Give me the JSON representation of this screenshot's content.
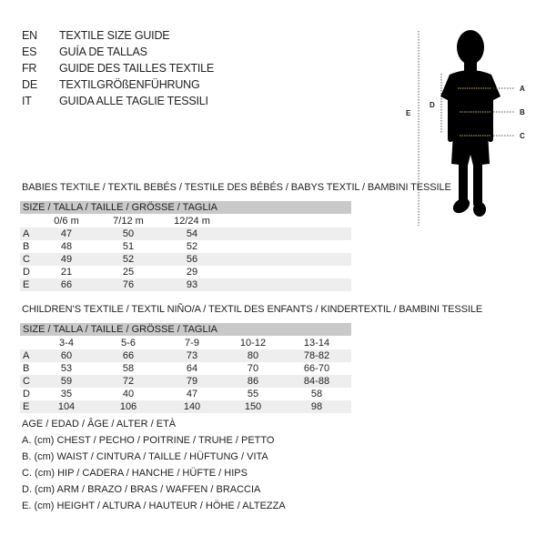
{
  "languages": [
    {
      "code": "EN",
      "text": "TEXTILE SIZE GUIDE"
    },
    {
      "code": "ES",
      "text": "GUÍA DE TALLAS"
    },
    {
      "code": "FR",
      "text": "GUIDE DES TAILLES TEXTILE"
    },
    {
      "code": "DE",
      "text": "TEXTILGRÖßENFÜHRUNG"
    },
    {
      "code": "IT",
      "text": "GUIDA ALLE TAGLIE TESSILI"
    }
  ],
  "babies": {
    "title": "BABIES TEXTILE / TEXTIL BEBÉS / TESTILE DES BÉBÉS / BABYS TEXTIL / BAMBINI TESSILE",
    "size_header": "SIZE / TALLA / TAILLE / GRÖSSE / TAGLIA",
    "columns": [
      "0/6 m",
      "7/12 m",
      "12/24 m"
    ],
    "rows": [
      {
        "label": "A",
        "values": [
          "47",
          "50",
          "54"
        ]
      },
      {
        "label": "B",
        "values": [
          "48",
          "51",
          "52"
        ]
      },
      {
        "label": "C",
        "values": [
          "49",
          "52",
          "56"
        ]
      },
      {
        "label": "D",
        "values": [
          "21",
          "25",
          "29"
        ]
      },
      {
        "label": "E",
        "values": [
          "66",
          "76",
          "93"
        ]
      }
    ]
  },
  "children": {
    "title": "CHILDREN’S TEXTILE / TEXTIL NIÑO/A / TEXTIL DES ENFANTS / KINDERTEXTIL / BAMBINI TESSILE",
    "size_header": "SIZE / TALLA / TAILLE / GRÖSSE / TAGLIA",
    "columns": [
      "3-4",
      "5-6",
      "7-9",
      "10-12",
      "13-14"
    ],
    "rows": [
      {
        "label": "A",
        "values": [
          "60",
          "66",
          "73",
          "80",
          "78-82"
        ]
      },
      {
        "label": "B",
        "values": [
          "53",
          "58",
          "64",
          "70",
          "66-70"
        ]
      },
      {
        "label": "C",
        "values": [
          "59",
          "72",
          "79",
          "86",
          "84-88"
        ]
      },
      {
        "label": "D",
        "values": [
          "35",
          "40",
          "47",
          "55",
          "58"
        ]
      },
      {
        "label": "E",
        "values": [
          "104",
          "106",
          "140",
          "150",
          "98"
        ]
      }
    ]
  },
  "legend": [
    "AGE / EDAD / ÂGE / ALTER / ETÀ",
    "A. (cm) CHEST / PECHO / POITRINE / TRUHE / PETTO",
    "B. (cm) WAIST / CINTURA / TAILLE / HÜFTUNG / VITA",
    "C. (cm) HIP / CADERA / HANCHE / HÜFTE / HIPS",
    "D. (cm) ARM / BRAZO / BRAS / WAFFEN / BRACCIA",
    "E. (cm) HEIGHT / ALTURA / HAUTEUR / HÖHE / ALTEZZA"
  ],
  "figure": {
    "labels": {
      "a": "A",
      "b": "B",
      "c": "C",
      "d": "D",
      "e": "E"
    },
    "line_color": "#c8b84a"
  }
}
